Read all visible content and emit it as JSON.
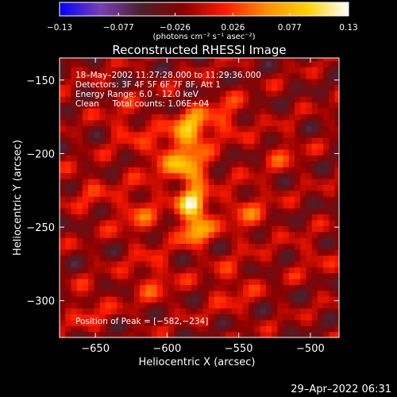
{
  "chart_data": {
    "type": "heatmap",
    "title": "Reconstructed RHESSI Image",
    "xlabel": "Heliocentric X (arcsec)",
    "ylabel": "Heliocentric Y (arcsec)",
    "xlim": [
      -675,
      -480
    ],
    "ylim": [
      -325,
      -135
    ],
    "x_ticks": [
      -650,
      -600,
      -550,
      -500
    ],
    "y_ticks": [
      -150,
      -200,
      -250,
      -300
    ],
    "x_tick_labels": [
      "−650",
      "−600",
      "−550",
      "−500"
    ],
    "y_tick_labels": [
      "−150",
      "−200",
      "−250",
      "−300"
    ],
    "colorbar": {
      "min": -0.13,
      "max": 0.13,
      "ticks": [
        -0.13,
        -0.077,
        -0.026,
        0.026,
        0.077,
        0.13
      ],
      "tick_labels": [
        "−0.13",
        "−0.077",
        "−0.026",
        "0.026",
        "0.077",
        "0.13"
      ],
      "unit_label": "(photons cm⁻² s⁻¹ asec⁻²)"
    },
    "annotations": [
      "18–May–2002 11:27:28.000 to 11:29:36.000",
      "Detectors: 3F 4F 5F 6F 7F 8F, Att 1",
      "Energy Range: 6.0 – 12.0 keV",
      "Clean     Total counts: 1.06E+04"
    ],
    "peak_label": "Position of Peak = [−582,−234]",
    "peak": [
      -582,
      -234
    ],
    "sources": [
      {
        "x": -582,
        "y": -234,
        "sigma": 7,
        "amp": 0.13
      },
      {
        "x": -583,
        "y": -183,
        "sigma": 8,
        "amp": 0.105
      },
      {
        "x": -580,
        "y": -252,
        "sigma": 7,
        "amp": 0.1
      },
      {
        "x": -583,
        "y": -210,
        "sigma": 8,
        "amp": 0.09
      },
      {
        "x": -600,
        "y": -200,
        "sigma": 12,
        "amp": 0.05
      },
      {
        "x": -560,
        "y": -175,
        "sigma": 10,
        "amp": 0.045
      },
      {
        "x": -620,
        "y": -240,
        "sigma": 12,
        "amp": 0.04
      },
      {
        "x": -545,
        "y": -240,
        "sigma": 12,
        "amp": 0.04
      },
      {
        "x": -630,
        "y": -180,
        "sigma": 10,
        "amp": 0.03
      },
      {
        "x": -655,
        "y": -225,
        "sigma": 10,
        "amp": 0.025
      },
      {
        "x": -520,
        "y": -200,
        "sigma": 10,
        "amp": 0.03
      },
      {
        "x": -610,
        "y": -285,
        "sigma": 12,
        "amp": 0.035
      },
      {
        "x": -555,
        "y": -290,
        "sigma": 12,
        "amp": 0.03
      },
      {
        "x": -655,
        "y": -305,
        "sigma": 10,
        "amp": 0.03
      },
      {
        "x": -500,
        "y": -270,
        "sigma": 10,
        "amp": 0.02
      }
    ],
    "colors": {
      "background": "#000000",
      "text": "#ffffff",
      "colormap": [
        "#0000ff",
        "#7a3fb4",
        "#4b1e2a",
        "#8b0000",
        "#ff1a00",
        "#ff8c00",
        "#ffd200",
        "#ffffff"
      ]
    }
  },
  "footer": {
    "timestamp": "29–Apr–2022 06:31"
  }
}
